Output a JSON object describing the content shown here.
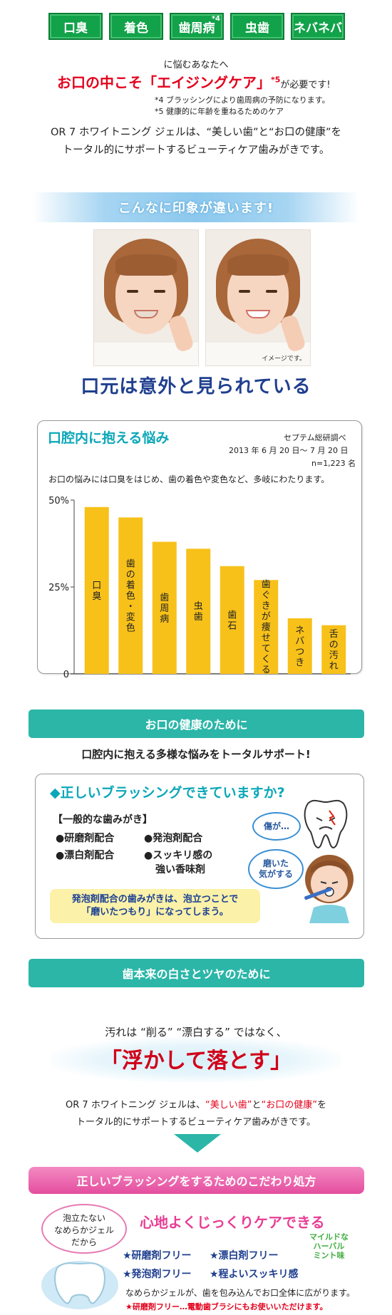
{
  "tags": [
    "口臭",
    "着色",
    "歯周病",
    "虫歯",
    "ネバネバ"
  ],
  "tag_superscript": "*4",
  "worries": "に悩むあなたへ",
  "headline": {
    "main": "お口の中こそ「エイジングケア」",
    "sup": "*5",
    "tail": "が必要です!"
  },
  "notes": [
    "*4 ブラッシングにより歯周病の予防になります。",
    "*5 健康的に年齢を重ねるためのケア"
  ],
  "intro_lines": [
    "OR 7 ホワイトニング ジェルは、“美しい歯”と“お口の健康”を",
    "トータル的にサポートするビューティケア歯みがきです。"
  ],
  "impression": {
    "band": "こんなに印象が違います!",
    "photo_caption": "イメージです。",
    "subtitle": "口元は意外と見られている"
  },
  "survey": {
    "title": "口腔内に抱える悩み",
    "source": "セプテム総研調べ",
    "date": "2013 年 6 月 20 日～ 7 月 20 日",
    "n": "n=1,223 名",
    "description": "お口の悩みには口臭をはじめ、歯の着色や変色など、多岐にわたります。"
  },
  "chart_data": {
    "type": "bar",
    "categories": [
      "口臭",
      "歯の着色・変色",
      "歯周病",
      "虫歯",
      "歯石",
      "歯ぐきが痩せてくる",
      "ネバつき",
      "舌の汚れ"
    ],
    "values": [
      48,
      45,
      38,
      36,
      31,
      27,
      16,
      14
    ],
    "ylim": [
      0,
      50
    ],
    "yticks": [
      "0",
      "25%",
      "50%"
    ],
    "ytick_values": [
      0,
      25,
      50
    ],
    "bar_color": "#f7c11a",
    "grid": false
  },
  "health": {
    "band": "お口の健康のために",
    "sub": "口腔内に抱える多様な悩みをトータルサポート!",
    "question": "◆正しいブラッシングできていますか?",
    "general": "【一般的な歯みがき】",
    "items": [
      "●研磨剤配合",
      "●発泡剤配合",
      "●漂白剤配合",
      "●スッキリ感の",
      "強い香味剤"
    ],
    "note_lines": [
      "発泡剤配合の歯みがきは、泡立つことで",
      "「磨いたつもり」になってしまう。"
    ],
    "bubble1": "傷が…",
    "bubble2_lines": [
      "磨いた",
      "気がする"
    ]
  },
  "whiten": {
    "band": "歯本来の白さとツヤのために",
    "line": "汚れは “削る” “漂白する” ではなく、",
    "big": "「浮かして落とす」",
    "intro_lines": [
      "OR 7 ホワイトニング ジェルは、“美しい歯”と“お口の健康”を",
      "トータル的にサポートするビューティケア歯みがきです。"
    ],
    "intro_red": [
      "“美しい歯”",
      "“お口の健康”"
    ]
  },
  "prescription": {
    "band": "正しいブラッシングをするためのこだわり処方",
    "blob_lines": [
      "泡立たない",
      "なめらかジェル",
      "だから"
    ],
    "title": "心地よくじっくりケアできる",
    "mild_lines": [
      "マイルドな",
      "ハーバル",
      "ミント味"
    ],
    "frees": [
      "★研磨剤フリー",
      "★漂白剤フリー",
      "★発泡剤フリー",
      "★程よいスッキリ感"
    ],
    "gel_line": "なめらかジェルが、歯を包み込んでお口全体に広がります。",
    "red_line": "★研磨剤フリー…電動歯ブラシにもお使いいただけます。"
  },
  "colors": {
    "green": "#12a24a",
    "red": "#e3001b",
    "teal": "#2bb6a8",
    "navy": "#1f3f8f",
    "pink": "#e44d9e"
  }
}
